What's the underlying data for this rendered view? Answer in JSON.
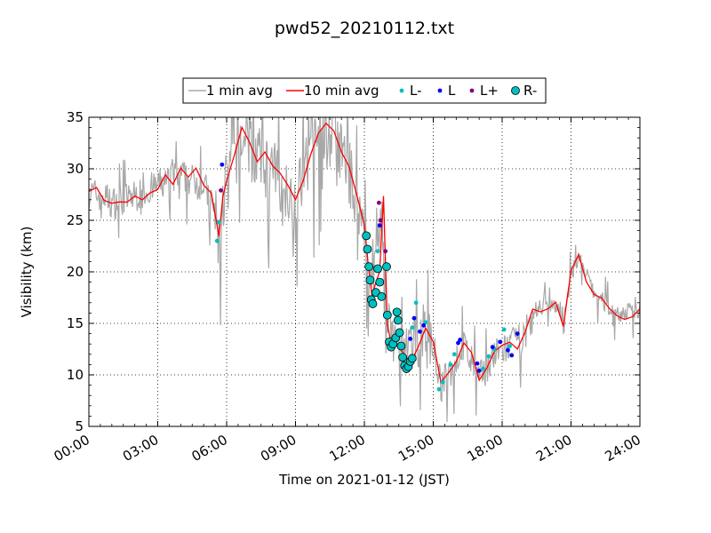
{
  "chart_data": {
    "type": "line",
    "title": "pwd52_20210112.txt",
    "xlabel": "Time on 2021-01-12 (JST)",
    "ylabel": "Visibility (km)",
    "xlim": [
      "00:00",
      "24:00"
    ],
    "ylim": [
      5,
      35
    ],
    "x_ticks": [
      "00:00",
      "03:00",
      "06:00",
      "09:00",
      "12:00",
      "15:00",
      "18:00",
      "21:00",
      "24:00"
    ],
    "y_ticks": [
      "5",
      "10",
      "15",
      "20",
      "25",
      "30",
      "35"
    ],
    "grid": true,
    "legend_position": "top-center",
    "legend": [
      "1 min avg",
      "10 min avg",
      "L-",
      "L",
      "L+",
      "R-"
    ],
    "series": [
      {
        "name": "10 min avg",
        "kind": "line",
        "color": "#ff0000",
        "points": [
          [
            "00:00",
            27.8
          ],
          [
            "00:20",
            28.3
          ],
          [
            "00:40",
            27.2
          ],
          [
            "01:00",
            26.5
          ],
          [
            "01:20",
            26.9
          ],
          [
            "01:40",
            27.0
          ],
          [
            "02:00",
            27.6
          ],
          [
            "02:20",
            27.3
          ],
          [
            "02:40",
            27.8
          ],
          [
            "03:00",
            28.0
          ],
          [
            "03:20",
            29.4
          ],
          [
            "03:40",
            28.6
          ],
          [
            "04:00",
            30.2
          ],
          [
            "04:20",
            29.1
          ],
          [
            "04:40",
            29.9
          ],
          [
            "05:00",
            28.5
          ],
          [
            "05:20",
            27.6
          ],
          [
            "05:40",
            23.5
          ],
          [
            "05:50",
            27.0
          ],
          [
            "06:00",
            29.0
          ],
          [
            "06:20",
            31.5
          ],
          [
            "06:40",
            33.8
          ],
          [
            "07:00",
            32.5
          ],
          [
            "07:20",
            30.6
          ],
          [
            "07:40",
            31.6
          ],
          [
            "08:00",
            30.3
          ],
          [
            "08:20",
            29.6
          ],
          [
            "08:40",
            28.4
          ],
          [
            "09:00",
            27.3
          ],
          [
            "09:20",
            28.8
          ],
          [
            "09:40",
            31.3
          ],
          [
            "10:00",
            33.6
          ],
          [
            "10:20",
            34.6
          ],
          [
            "10:40",
            33.5
          ],
          [
            "11:00",
            31.5
          ],
          [
            "11:20",
            30.4
          ],
          [
            "11:40",
            27.2
          ],
          [
            "12:00",
            24.6
          ],
          [
            "12:10",
            20.7
          ],
          [
            "12:20",
            17.5
          ],
          [
            "12:30",
            19.2
          ],
          [
            "12:40",
            20.2
          ],
          [
            "12:50",
            27.4
          ],
          [
            "13:00",
            15.2
          ],
          [
            "13:10",
            13.3
          ],
          [
            "13:20",
            13.1
          ],
          [
            "13:40",
            12.4
          ],
          [
            "14:00",
            11.1
          ],
          [
            "14:20",
            12.6
          ],
          [
            "14:40",
            14.4
          ],
          [
            "15:00",
            13.2
          ],
          [
            "15:20",
            9.1
          ],
          [
            "15:40",
            10.3
          ],
          [
            "16:00",
            11.4
          ],
          [
            "16:20",
            13.1
          ],
          [
            "16:40",
            12.3
          ],
          [
            "17:00",
            9.5
          ],
          [
            "17:20",
            10.4
          ],
          [
            "17:40",
            12.0
          ],
          [
            "18:00",
            12.9
          ],
          [
            "18:20",
            13.3
          ],
          [
            "18:40",
            12.3
          ],
          [
            "19:00",
            14.1
          ],
          [
            "19:20",
            16.5
          ],
          [
            "19:40",
            16.1
          ],
          [
            "20:00",
            16.3
          ],
          [
            "20:20",
            17.3
          ],
          [
            "20:40",
            14.4
          ],
          [
            "21:00",
            20.0
          ],
          [
            "21:20",
            21.7
          ],
          [
            "21:40",
            19.3
          ],
          [
            "22:00",
            18.1
          ],
          [
            "22:20",
            17.5
          ],
          [
            "22:40",
            16.6
          ],
          [
            "23:00",
            15.9
          ],
          [
            "23:20",
            15.3
          ],
          [
            "23:40",
            15.6
          ],
          [
            "24:00",
            16.4
          ]
        ]
      },
      {
        "name": "L-",
        "kind": "markers",
        "color": "#00c0c0",
        "points": [
          [
            "05:35",
            23.0
          ],
          [
            "05:40",
            24.8
          ],
          [
            "12:35",
            22.0
          ],
          [
            "14:05",
            14.6
          ],
          [
            "14:15",
            17.0
          ],
          [
            "14:40",
            15.1
          ],
          [
            "15:15",
            8.6
          ],
          [
            "15:25",
            9.3
          ],
          [
            "15:45",
            11.0
          ],
          [
            "15:55",
            12.0
          ],
          [
            "17:10",
            10.6
          ],
          [
            "17:25",
            11.8
          ],
          [
            "17:40",
            12.5
          ],
          [
            "18:05",
            14.4
          ],
          [
            "18:20",
            12.8
          ]
        ]
      },
      {
        "name": "L",
        "kind": "markers",
        "color": "#0000ff",
        "points": [
          [
            "05:48",
            30.4
          ],
          [
            "12:40",
            24.5
          ],
          [
            "14:00",
            13.5
          ],
          [
            "14:10",
            15.5
          ],
          [
            "14:25",
            14.2
          ],
          [
            "14:35",
            14.8
          ],
          [
            "16:05",
            13.1
          ],
          [
            "16:10",
            13.4
          ],
          [
            "16:55",
            11.1
          ],
          [
            "17:00",
            10.4
          ],
          [
            "17:35",
            12.7
          ],
          [
            "17:55",
            13.2
          ],
          [
            "18:15",
            12.4
          ],
          [
            "18:25",
            11.9
          ],
          [
            "18:40",
            14.0
          ]
        ]
      },
      {
        "name": "L+",
        "kind": "markers",
        "color": "#800080",
        "points": [
          [
            "05:45",
            27.9
          ],
          [
            "12:38",
            26.7
          ],
          [
            "12:42",
            25.0
          ],
          [
            "12:55",
            22.0
          ]
        ]
      },
      {
        "name": "R-",
        "kind": "markers",
        "color": "#00c0c0",
        "points": [
          [
            "12:05",
            23.5
          ],
          [
            "12:08",
            22.2
          ],
          [
            "12:12",
            20.5
          ],
          [
            "12:15",
            19.2
          ],
          [
            "12:18",
            17.3
          ],
          [
            "12:22",
            16.9
          ],
          [
            "12:30",
            18.0
          ],
          [
            "12:35",
            20.3
          ],
          [
            "12:40",
            19.0
          ],
          [
            "12:45",
            17.6
          ],
          [
            "12:58",
            20.5
          ],
          [
            "13:00",
            15.8
          ],
          [
            "13:05",
            13.2
          ],
          [
            "13:10",
            12.7
          ],
          [
            "13:15",
            13.0
          ],
          [
            "13:22",
            13.6
          ],
          [
            "13:25",
            16.1
          ],
          [
            "13:28",
            15.3
          ],
          [
            "13:32",
            14.1
          ],
          [
            "13:36",
            12.8
          ],
          [
            "13:40",
            11.7
          ],
          [
            "13:45",
            10.9
          ],
          [
            "13:50",
            10.6
          ],
          [
            "13:55",
            10.8
          ],
          [
            "14:00",
            11.3
          ],
          [
            "14:05",
            11.6
          ]
        ]
      }
    ],
    "raw_1min_color": "#a8a8a8",
    "raw_1min_seed_centers": [
      [
        "00:00",
        27.8
      ],
      [
        "00:40",
        27.5
      ],
      [
        "01:00",
        26.8
      ],
      [
        "02:00",
        27.5
      ],
      [
        "03:00",
        28.5
      ],
      [
        "04:00",
        29.5
      ],
      [
        "05:00",
        28.6
      ],
      [
        "05:30",
        26.0
      ],
      [
        "05:40",
        23.0
      ],
      [
        "06:00",
        30.0
      ],
      [
        "06:40",
        33.0
      ],
      [
        "07:30",
        31.0
      ],
      [
        "08:30",
        29.0
      ],
      [
        "09:00",
        27.5
      ],
      [
        "10:00",
        33.0
      ],
      [
        "10:40",
        33.5
      ],
      [
        "11:20",
        30.0
      ],
      [
        "12:00",
        24.5
      ],
      [
        "12:20",
        18.0
      ],
      [
        "12:45",
        26.5
      ],
      [
        "13:00",
        15.0
      ],
      [
        "13:40",
        12.0
      ],
      [
        "14:20",
        13.5
      ],
      [
        "14:40",
        15.0
      ],
      [
        "15:00",
        13.0
      ],
      [
        "15:20",
        9.0
      ],
      [
        "16:00",
        11.5
      ],
      [
        "16:20",
        13.0
      ],
      [
        "17:00",
        9.8
      ],
      [
        "17:40",
        12.0
      ],
      [
        "18:20",
        13.0
      ],
      [
        "19:00",
        14.0
      ],
      [
        "19:30",
        16.5
      ],
      [
        "20:20",
        17.0
      ],
      [
        "20:40",
        14.5
      ],
      [
        "21:00",
        20.0
      ],
      [
        "21:20",
        21.5
      ],
      [
        "22:00",
        18.0
      ],
      [
        "23:00",
        16.0
      ],
      [
        "24:00",
        16.3
      ]
    ]
  }
}
